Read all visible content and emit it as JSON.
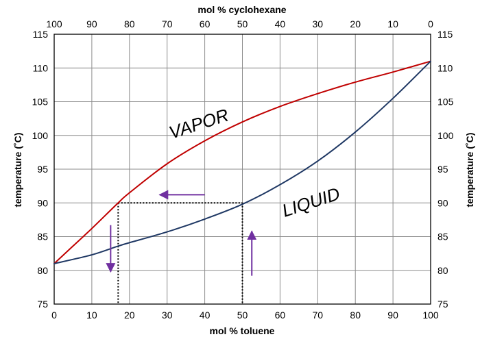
{
  "chart_data": {
    "type": "line",
    "xlabel": "mol % toluene",
    "x2label": "mol % cyclohexane",
    "ylabel": "temperature (˚C)",
    "y2label": "temperature (˚C)",
    "xlim": [
      0,
      100
    ],
    "x2lim": [
      100,
      0
    ],
    "ylim": [
      75,
      115
    ],
    "grid": true,
    "x_ticks": [
      "0",
      "10",
      "20",
      "30",
      "40",
      "50",
      "60",
      "70",
      "80",
      "90",
      "100"
    ],
    "x2_ticks": [
      "100",
      "90",
      "80",
      "70",
      "60",
      "50",
      "40",
      "30",
      "20",
      "10",
      "0"
    ],
    "y_ticks": [
      "75",
      "80",
      "85",
      "90",
      "95",
      "100",
      "105",
      "110",
      "115"
    ],
    "series": [
      {
        "name": "VAPOR",
        "color": "#c00000",
        "x": [
          0,
          5,
          10,
          17,
          20,
          30,
          40,
          50,
          60,
          70,
          80,
          90,
          100
        ],
        "y": [
          81,
          83.6,
          86.2,
          90,
          91.5,
          95.8,
          99.2,
          102,
          104.3,
          106.2,
          107.9,
          109.4,
          111
        ]
      },
      {
        "name": "LIQUID",
        "color": "#1f3864",
        "x": [
          0,
          10,
          17,
          20,
          30,
          40,
          50,
          60,
          70,
          80,
          90,
          100
        ],
        "y": [
          81,
          82.3,
          83.6,
          84.1,
          85.7,
          87.6,
          89.8,
          92.7,
          96.2,
          100.5,
          105.5,
          111
        ]
      }
    ],
    "annotations": {
      "vapor_label": "VAPOR",
      "liquid_label": "LIQUID",
      "guide_color": "#000000",
      "arrow_color": "#7030a0",
      "guide_lines": [
        {
          "x1": 17,
          "y1": 90,
          "x2": 50,
          "y2": 90
        },
        {
          "x1": 17,
          "y1": 90,
          "x2": 17,
          "y2": 75
        },
        {
          "x1": 50,
          "y1": 90,
          "x2": 50,
          "y2": 75
        }
      ],
      "arrows": [
        {
          "from": [
            40,
            91.2
          ],
          "to": [
            28,
            91.2
          ]
        },
        {
          "from": [
            52.5,
            79.2
          ],
          "to": [
            52.5,
            85.8
          ]
        },
        {
          "from": [
            15,
            86.7
          ],
          "to": [
            15,
            79.8
          ]
        }
      ]
    }
  }
}
